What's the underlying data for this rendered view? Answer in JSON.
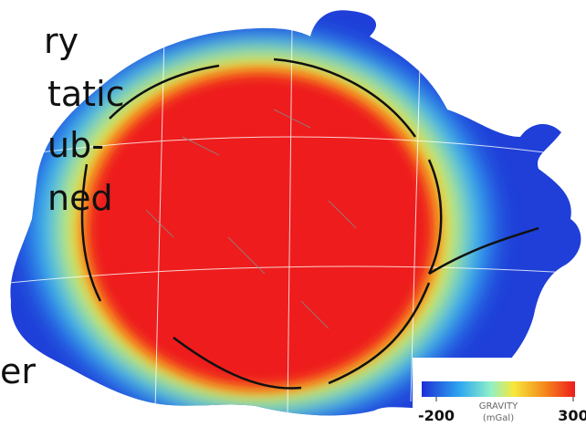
{
  "slide_text": [
    "ry",
    "tatic",
    "ub-",
    "ned",
    "er"
  ],
  "colorbar": {
    "title": "GRAVITY",
    "unit": "(mGal)",
    "ticks": [
      -200,
      300
    ]
  }
}
